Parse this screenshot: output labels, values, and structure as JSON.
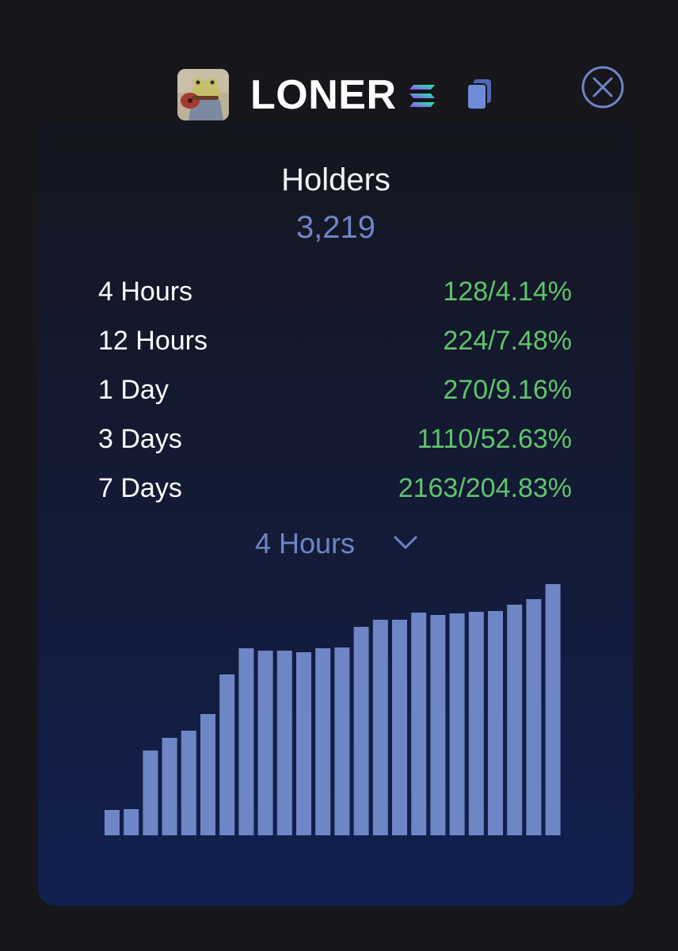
{
  "token": {
    "name": "LONER",
    "avatar_icon": "frog-avatar-icon",
    "chain_icon": "solana-icon",
    "copy_icon": "copy-icon"
  },
  "close_icon": "close-circle-icon",
  "holders": {
    "title": "Holders",
    "value": "3,219"
  },
  "stats": [
    {
      "label": "4 Hours",
      "value": "128/4.14%"
    },
    {
      "label": "12 Hours",
      "value": "224/7.48%"
    },
    {
      "label": "1 Day",
      "value": "270/9.16%"
    },
    {
      "label": "3 Days",
      "value": "1110/52.63%"
    },
    {
      "label": "7 Days",
      "value": "2163/204.83%"
    }
  ],
  "range_select": {
    "label": "4 Hours",
    "icon": "chevron-down-icon"
  },
  "colors": {
    "accent": "#6e86c6",
    "positive": "#5fc46d",
    "bar": "#6e86c6"
  },
  "chart_data": {
    "type": "bar",
    "values": [
      32,
      33,
      107,
      123,
      132,
      153,
      203,
      236,
      233,
      233,
      231,
      236,
      237,
      263,
      272,
      272,
      281,
      278,
      280,
      282,
      283,
      291,
      298,
      317
    ]
  }
}
